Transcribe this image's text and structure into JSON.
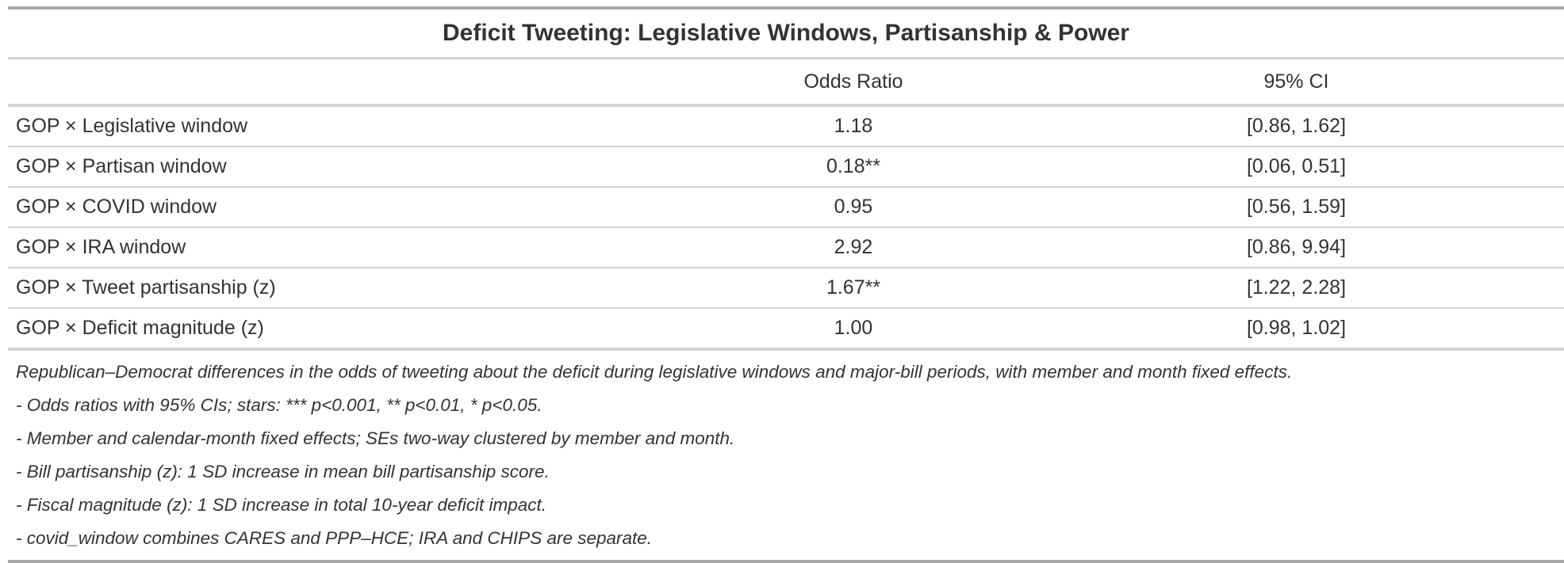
{
  "table": {
    "title": "Deficit Tweeting: Legislative Windows, Partisanship & Power",
    "columns": [
      "",
      "Odds Ratio",
      "95% CI"
    ],
    "rows": [
      {
        "term": "GOP × Legislative window",
        "odds_ratio": "1.18",
        "ci": "[0.86, 1.62]"
      },
      {
        "term": "GOP × Partisan window",
        "odds_ratio": "0.18**",
        "ci": "[0.06, 0.51]"
      },
      {
        "term": "GOP × COVID window",
        "odds_ratio": "0.95",
        "ci": "[0.56, 1.59]"
      },
      {
        "term": "GOP × IRA window",
        "odds_ratio": "2.92",
        "ci": "[0.86, 9.94]"
      },
      {
        "term": "GOP × Tweet partisanship (z)",
        "odds_ratio": "1.67**",
        "ci": "[1.22, 2.28]"
      },
      {
        "term": "GOP × Deficit magnitude (z)",
        "odds_ratio": "1.00",
        "ci": "[0.98, 1.02]"
      }
    ],
    "notes": [
      "Republican–Democrat differences in the odds of tweeting about the deficit during legislative windows and major-bill periods, with member and month fixed effects.",
      "- Odds ratios with 95% CIs; stars: *** p<0.001, ** p<0.01, * p<0.05.",
      "- Member and calendar-month fixed effects; SEs two-way clustered by member and month.",
      "- Bill partisanship (z): 1 SD increase in mean bill partisanship score.",
      "- Fiscal magnitude (z): 1 SD increase in total 10-year deficit impact.",
      "- covid_window combines CARES and PPP–HCE; IRA and CHIPS are separate."
    ]
  }
}
